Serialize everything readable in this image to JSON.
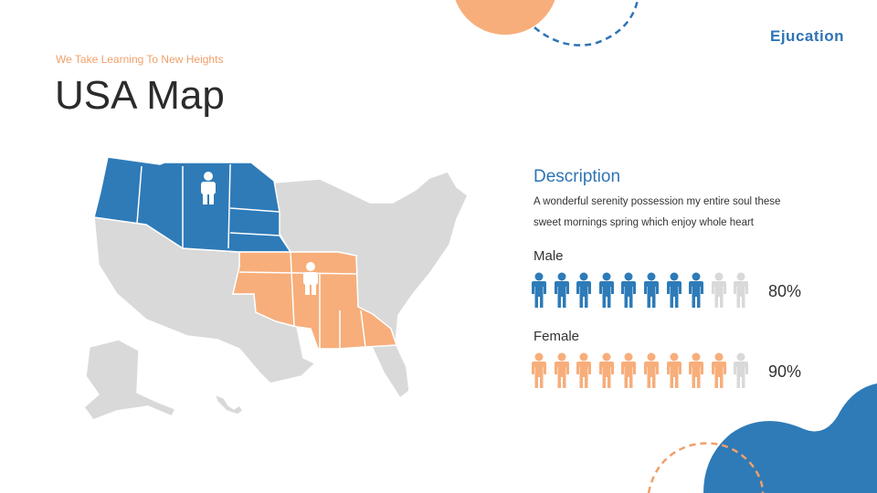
{
  "header": {
    "tagline": "We Take Learning To New Heights",
    "title": "USA Map",
    "logo": "Ejucation"
  },
  "description": {
    "heading": "Description",
    "text": "A wonderful serenity possession my entire soul these sweet mornings spring which enjoy whole heart"
  },
  "groups": [
    {
      "label": "Male",
      "percent_label": "80%",
      "filled": 8,
      "total": 10
    },
    {
      "label": "Female",
      "percent_label": "90%",
      "filled": 9,
      "total": 10
    }
  ],
  "map": {
    "highlight_blue_states": [
      "WA",
      "OR",
      "ID",
      "MT",
      "WY",
      "ND",
      "SD",
      "NE"
    ],
    "highlight_orange_states": [
      "KS",
      "MO",
      "OK",
      "AR",
      "LA",
      "MS",
      "AL",
      "GA"
    ]
  },
  "colors": {
    "blue": "#2e7bb8",
    "orange": "#f7ae7b",
    "gray": "#d9d9d9",
    "person_inactive": "#d9d9d9",
    "accent_blue": "#2e74b5",
    "accent_orange": "#f0a06a"
  },
  "icons": {
    "person": "person-icon",
    "blue_group": "map-pin-person-icon"
  }
}
